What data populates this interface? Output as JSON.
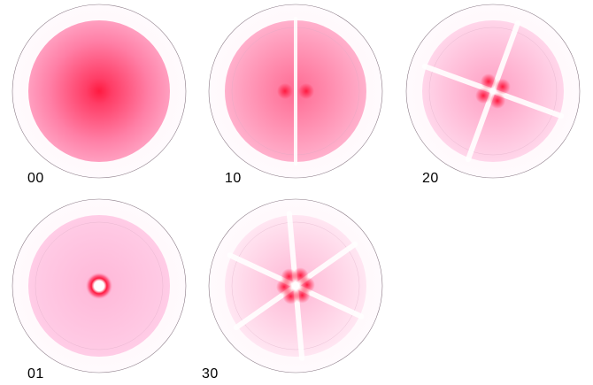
{
  "colors": {
    "peak": "#ff1a40",
    "background": "#ffffff",
    "rim": "#8a7a86"
  },
  "modes": [
    {
      "label": "00",
      "l": 0,
      "p": 0
    },
    {
      "label": "10",
      "l": 1,
      "p": 0
    },
    {
      "label": "20",
      "l": 2,
      "p": 0
    },
    {
      "label": "01",
      "l": 0,
      "p": 1
    },
    {
      "label": "30",
      "l": 3,
      "p": 0
    }
  ]
}
